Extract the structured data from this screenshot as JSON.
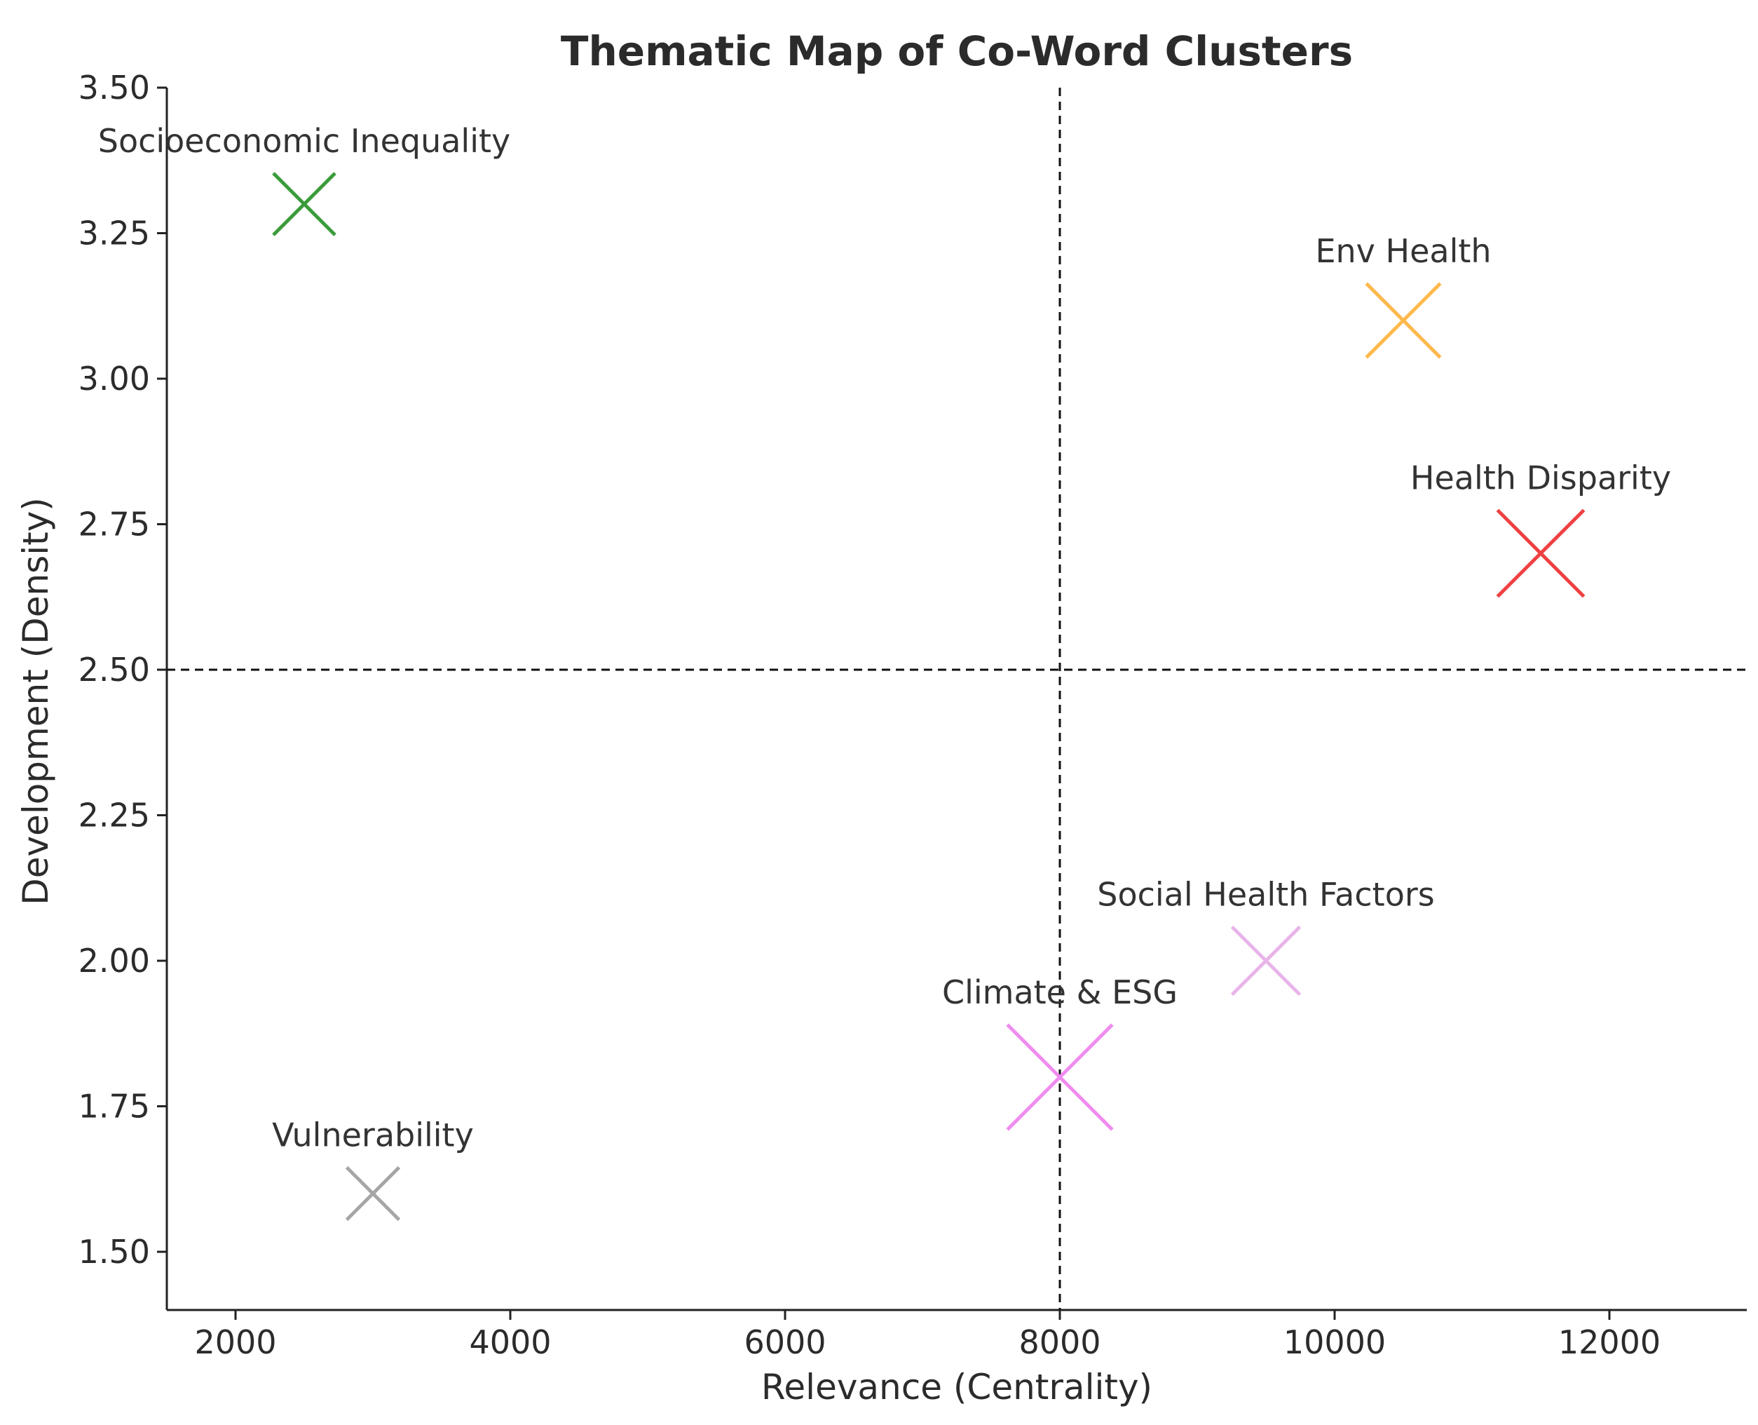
{
  "chart_data": {
    "type": "scatter",
    "title": "Thematic Map of Co-Word Clusters",
    "xlabel": "Relevance (Centrality)",
    "ylabel": "Development (Density)",
    "xlim": [
      1500,
      13000
    ],
    "ylim": [
      1.4,
      3.5
    ],
    "x_ticks": [
      2000,
      4000,
      6000,
      8000,
      10000,
      12000
    ],
    "x_tick_labels": [
      "2000",
      "4000",
      "6000",
      "8000",
      "10000",
      "12000"
    ],
    "y_ticks": [
      1.5,
      1.75,
      2.0,
      2.25,
      2.5,
      2.75,
      3.0,
      3.25,
      3.5
    ],
    "y_tick_labels": [
      "1.50",
      "1.75",
      "2.00",
      "2.25",
      "2.50",
      "2.75",
      "3.00",
      "3.25",
      "3.50"
    ],
    "reference_lines": {
      "x": 8000,
      "y": 2.5
    },
    "grid": false,
    "marker": "x",
    "points": [
      {
        "label": "Socioeconomic Inequality",
        "x": 2500,
        "y": 3.3,
        "color": "#3a9b3a",
        "size": 1.0
      },
      {
        "label": "Env Health",
        "x": 10500,
        "y": 3.1,
        "color": "#ffb84d",
        "size": 1.2
      },
      {
        "label": "Health Disparity",
        "x": 11500,
        "y": 2.7,
        "color": "#ee4040",
        "size": 1.4
      },
      {
        "label": "Social Health Factors",
        "x": 9500,
        "y": 2.0,
        "color": "#e9b4e9",
        "size": 1.1
      },
      {
        "label": "Climate & ESG",
        "x": 8000,
        "y": 1.8,
        "color": "#f08cf0",
        "size": 1.7
      },
      {
        "label": "Vulnerability",
        "x": 3000,
        "y": 1.6,
        "color": "#a6a6a6",
        "size": 0.85
      }
    ]
  }
}
